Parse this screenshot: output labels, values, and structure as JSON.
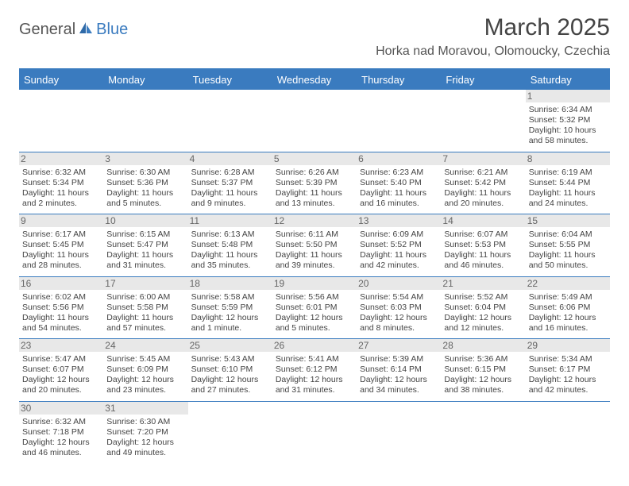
{
  "brand": {
    "general": "General",
    "blue": "Blue"
  },
  "title": {
    "month": "March 2025",
    "location": "Horka nad Moravou, Olomoucky, Czechia"
  },
  "header_row": {
    "bg_color": "#3a7bbf",
    "text_color": "#ffffff",
    "font_size": 13
  },
  "cell_style": {
    "daynum_bg": "#e8e8e8",
    "daynum_color": "#666666",
    "text_color": "#444444",
    "text_fontsize": 10.5,
    "border_color": "#3a7bbf"
  },
  "weekdays": [
    "Sunday",
    "Monday",
    "Tuesday",
    "Wednesday",
    "Thursday",
    "Friday",
    "Saturday"
  ],
  "weeks": [
    [
      {
        "n": "",
        "sunrise": "",
        "sunset": "",
        "daylight": ""
      },
      {
        "n": "",
        "sunrise": "",
        "sunset": "",
        "daylight": ""
      },
      {
        "n": "",
        "sunrise": "",
        "sunset": "",
        "daylight": ""
      },
      {
        "n": "",
        "sunrise": "",
        "sunset": "",
        "daylight": ""
      },
      {
        "n": "",
        "sunrise": "",
        "sunset": "",
        "daylight": ""
      },
      {
        "n": "",
        "sunrise": "",
        "sunset": "",
        "daylight": ""
      },
      {
        "n": "1",
        "sunrise": "Sunrise: 6:34 AM",
        "sunset": "Sunset: 5:32 PM",
        "daylight": "Daylight: 10 hours and 58 minutes."
      }
    ],
    [
      {
        "n": "2",
        "sunrise": "Sunrise: 6:32 AM",
        "sunset": "Sunset: 5:34 PM",
        "daylight": "Daylight: 11 hours and 2 minutes."
      },
      {
        "n": "3",
        "sunrise": "Sunrise: 6:30 AM",
        "sunset": "Sunset: 5:36 PM",
        "daylight": "Daylight: 11 hours and 5 minutes."
      },
      {
        "n": "4",
        "sunrise": "Sunrise: 6:28 AM",
        "sunset": "Sunset: 5:37 PM",
        "daylight": "Daylight: 11 hours and 9 minutes."
      },
      {
        "n": "5",
        "sunrise": "Sunrise: 6:26 AM",
        "sunset": "Sunset: 5:39 PM",
        "daylight": "Daylight: 11 hours and 13 minutes."
      },
      {
        "n": "6",
        "sunrise": "Sunrise: 6:23 AM",
        "sunset": "Sunset: 5:40 PM",
        "daylight": "Daylight: 11 hours and 16 minutes."
      },
      {
        "n": "7",
        "sunrise": "Sunrise: 6:21 AM",
        "sunset": "Sunset: 5:42 PM",
        "daylight": "Daylight: 11 hours and 20 minutes."
      },
      {
        "n": "8",
        "sunrise": "Sunrise: 6:19 AM",
        "sunset": "Sunset: 5:44 PM",
        "daylight": "Daylight: 11 hours and 24 minutes."
      }
    ],
    [
      {
        "n": "9",
        "sunrise": "Sunrise: 6:17 AM",
        "sunset": "Sunset: 5:45 PM",
        "daylight": "Daylight: 11 hours and 28 minutes."
      },
      {
        "n": "10",
        "sunrise": "Sunrise: 6:15 AM",
        "sunset": "Sunset: 5:47 PM",
        "daylight": "Daylight: 11 hours and 31 minutes."
      },
      {
        "n": "11",
        "sunrise": "Sunrise: 6:13 AM",
        "sunset": "Sunset: 5:48 PM",
        "daylight": "Daylight: 11 hours and 35 minutes."
      },
      {
        "n": "12",
        "sunrise": "Sunrise: 6:11 AM",
        "sunset": "Sunset: 5:50 PM",
        "daylight": "Daylight: 11 hours and 39 minutes."
      },
      {
        "n": "13",
        "sunrise": "Sunrise: 6:09 AM",
        "sunset": "Sunset: 5:52 PM",
        "daylight": "Daylight: 11 hours and 42 minutes."
      },
      {
        "n": "14",
        "sunrise": "Sunrise: 6:07 AM",
        "sunset": "Sunset: 5:53 PM",
        "daylight": "Daylight: 11 hours and 46 minutes."
      },
      {
        "n": "15",
        "sunrise": "Sunrise: 6:04 AM",
        "sunset": "Sunset: 5:55 PM",
        "daylight": "Daylight: 11 hours and 50 minutes."
      }
    ],
    [
      {
        "n": "16",
        "sunrise": "Sunrise: 6:02 AM",
        "sunset": "Sunset: 5:56 PM",
        "daylight": "Daylight: 11 hours and 54 minutes."
      },
      {
        "n": "17",
        "sunrise": "Sunrise: 6:00 AM",
        "sunset": "Sunset: 5:58 PM",
        "daylight": "Daylight: 11 hours and 57 minutes."
      },
      {
        "n": "18",
        "sunrise": "Sunrise: 5:58 AM",
        "sunset": "Sunset: 5:59 PM",
        "daylight": "Daylight: 12 hours and 1 minute."
      },
      {
        "n": "19",
        "sunrise": "Sunrise: 5:56 AM",
        "sunset": "Sunset: 6:01 PM",
        "daylight": "Daylight: 12 hours and 5 minutes."
      },
      {
        "n": "20",
        "sunrise": "Sunrise: 5:54 AM",
        "sunset": "Sunset: 6:03 PM",
        "daylight": "Daylight: 12 hours and 8 minutes."
      },
      {
        "n": "21",
        "sunrise": "Sunrise: 5:52 AM",
        "sunset": "Sunset: 6:04 PM",
        "daylight": "Daylight: 12 hours and 12 minutes."
      },
      {
        "n": "22",
        "sunrise": "Sunrise: 5:49 AM",
        "sunset": "Sunset: 6:06 PM",
        "daylight": "Daylight: 12 hours and 16 minutes."
      }
    ],
    [
      {
        "n": "23",
        "sunrise": "Sunrise: 5:47 AM",
        "sunset": "Sunset: 6:07 PM",
        "daylight": "Daylight: 12 hours and 20 minutes."
      },
      {
        "n": "24",
        "sunrise": "Sunrise: 5:45 AM",
        "sunset": "Sunset: 6:09 PM",
        "daylight": "Daylight: 12 hours and 23 minutes."
      },
      {
        "n": "25",
        "sunrise": "Sunrise: 5:43 AM",
        "sunset": "Sunset: 6:10 PM",
        "daylight": "Daylight: 12 hours and 27 minutes."
      },
      {
        "n": "26",
        "sunrise": "Sunrise: 5:41 AM",
        "sunset": "Sunset: 6:12 PM",
        "daylight": "Daylight: 12 hours and 31 minutes."
      },
      {
        "n": "27",
        "sunrise": "Sunrise: 5:39 AM",
        "sunset": "Sunset: 6:14 PM",
        "daylight": "Daylight: 12 hours and 34 minutes."
      },
      {
        "n": "28",
        "sunrise": "Sunrise: 5:36 AM",
        "sunset": "Sunset: 6:15 PM",
        "daylight": "Daylight: 12 hours and 38 minutes."
      },
      {
        "n": "29",
        "sunrise": "Sunrise: 5:34 AM",
        "sunset": "Sunset: 6:17 PM",
        "daylight": "Daylight: 12 hours and 42 minutes."
      }
    ],
    [
      {
        "n": "30",
        "sunrise": "Sunrise: 6:32 AM",
        "sunset": "Sunset: 7:18 PM",
        "daylight": "Daylight: 12 hours and 46 minutes."
      },
      {
        "n": "31",
        "sunrise": "Sunrise: 6:30 AM",
        "sunset": "Sunset: 7:20 PM",
        "daylight": "Daylight: 12 hours and 49 minutes."
      },
      {
        "n": "",
        "sunrise": "",
        "sunset": "",
        "daylight": ""
      },
      {
        "n": "",
        "sunrise": "",
        "sunset": "",
        "daylight": ""
      },
      {
        "n": "",
        "sunrise": "",
        "sunset": "",
        "daylight": ""
      },
      {
        "n": "",
        "sunrise": "",
        "sunset": "",
        "daylight": ""
      },
      {
        "n": "",
        "sunrise": "",
        "sunset": "",
        "daylight": ""
      }
    ]
  ]
}
